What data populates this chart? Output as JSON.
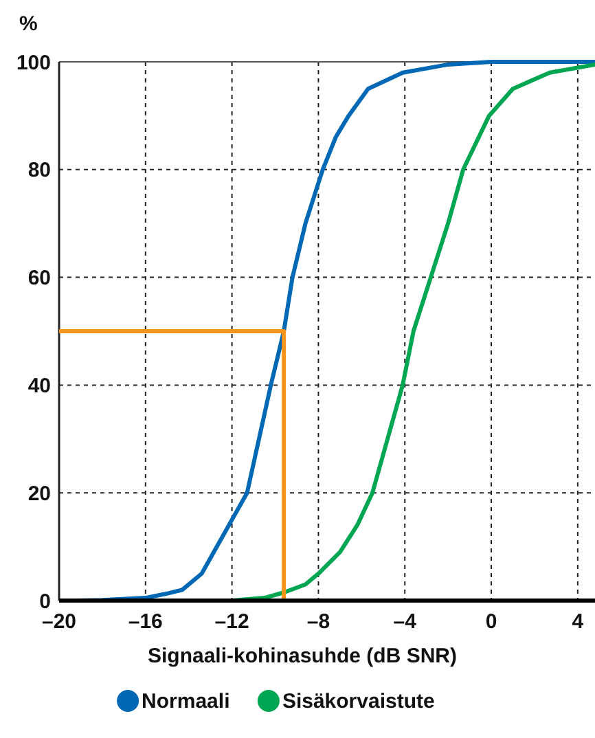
{
  "chart_data": {
    "type": "line",
    "ylabel": "%",
    "xlabel": "Signaali-kohinasuhde (dB SNR)",
    "xlim": [
      -20,
      4.8
    ],
    "ylim": [
      0,
      100
    ],
    "xticks": [
      {
        "value": -20,
        "label": "–20"
      },
      {
        "value": -16,
        "label": "–16"
      },
      {
        "value": -12,
        "label": "–12"
      },
      {
        "value": -8,
        "label": "–8"
      },
      {
        "value": -4,
        "label": "–4"
      },
      0,
      4
    ],
    "yticks": [
      0,
      20,
      40,
      60,
      80,
      100
    ],
    "grid": true,
    "legend": "bottom",
    "marker": "none",
    "line_style": "solid",
    "series": [
      {
        "name": "Normaali",
        "color": "#0068b4",
        "x": [
          -19.2,
          -18,
          -16,
          -15,
          -14.3,
          -13.4,
          -12,
          -11.3,
          -10.2,
          -9.6,
          -9.2,
          -8.6,
          -7.8,
          -7.2,
          -6.6,
          -5.7,
          -4.1,
          -2,
          0,
          4.8
        ],
        "values": [
          0,
          0.1,
          0.5,
          1.3,
          2,
          5,
          15,
          20,
          40,
          50,
          60,
          70,
          80,
          86,
          90,
          95,
          98,
          99.5,
          100,
          100
        ]
      },
      {
        "name": "Sisäkorvaistute",
        "color": "#00a651",
        "x": [
          -12,
          -10.5,
          -9.6,
          -8.6,
          -8,
          -7,
          -6.2,
          -5.5,
          -4.8,
          -4.1,
          -3.6,
          -2.8,
          -2,
          -1.3,
          -0.1,
          1,
          2.7,
          4.8
        ],
        "values": [
          0,
          0.5,
          1.5,
          3,
          5,
          9,
          14,
          20,
          30,
          40,
          50,
          60,
          70,
          80,
          90,
          95,
          98,
          99.5
        ]
      },
      {
        "type": "line",
        "color": "#f7941d",
        "x": [
          -20,
          -9.6,
          -9.6
        ],
        "values": [
          50,
          50,
          0
        ]
      }
    ]
  }
}
